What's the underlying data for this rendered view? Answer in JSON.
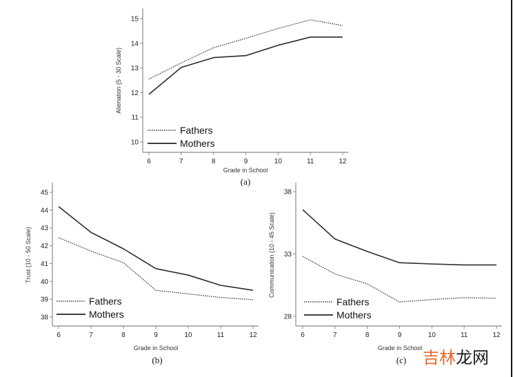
{
  "chart_data": [
    {
      "id": "a",
      "type": "line",
      "panel_label": "(a)",
      "xlabel": "Grade in School",
      "ylabel": "Alienation (5 - 30 Scale)",
      "x": [
        6,
        7,
        8,
        9,
        10,
        11,
        12
      ],
      "xticks": [
        "6",
        "7",
        "8",
        "9",
        "10",
        "11",
        "12"
      ],
      "yticks": [
        10,
        11,
        12,
        13,
        14,
        15
      ],
      "ylim": [
        9.85,
        15.4
      ],
      "legend": "bottom-left",
      "series": [
        {
          "name": "Fathers",
          "style": "dotted",
          "values": [
            12.55,
            13.2,
            13.82,
            14.2,
            14.6,
            14.95,
            14.72
          ]
        },
        {
          "name": "Mothers",
          "style": "solid",
          "values": [
            11.93,
            13.02,
            13.42,
            13.5,
            13.92,
            14.25,
            14.25
          ]
        }
      ]
    },
    {
      "id": "b",
      "type": "line",
      "panel_label": "(b)",
      "xlabel": "Grade in School",
      "ylabel": "Trust (10 - 50 Scale)",
      "x": [
        6,
        7,
        8,
        9,
        10,
        11,
        12
      ],
      "xticks": [
        "6",
        "7",
        "8",
        "9",
        "10",
        "11",
        "12"
      ],
      "yticks": [
        38,
        39,
        40,
        41,
        42,
        43,
        44,
        45
      ],
      "ylim": [
        37.5,
        45.5
      ],
      "legend": "bottom-left",
      "series": [
        {
          "name": "Fathers",
          "style": "dotted",
          "values": [
            42.45,
            41.7,
            41.05,
            39.5,
            39.3,
            39.1,
            38.97
          ]
        },
        {
          "name": "Mothers",
          "style": "solid",
          "values": [
            44.2,
            42.75,
            41.83,
            40.72,
            40.35,
            39.78,
            39.5
          ]
        }
      ]
    },
    {
      "id": "c",
      "type": "line",
      "panel_label": "(c)",
      "xlabel": "Grade in School",
      "ylabel": "Communication (10 - 45 Scale)",
      "x": [
        6,
        7,
        8,
        9,
        10,
        11,
        12
      ],
      "xticks": [
        "6",
        "7",
        "8",
        "9",
        "10",
        "11",
        "12"
      ],
      "yticks": [
        28,
        33,
        38
      ],
      "ylim": [
        27.2,
        38.8
      ],
      "legend": "bottom-left",
      "series": [
        {
          "name": "Fathers",
          "style": "dotted",
          "values": [
            32.8,
            31.4,
            30.6,
            29.15,
            29.35,
            29.5,
            29.45
          ]
        },
        {
          "name": "Mothers",
          "style": "solid",
          "values": [
            36.55,
            34.2,
            33.2,
            32.3,
            32.2,
            32.12,
            32.12
          ]
        }
      ]
    }
  ],
  "watermark": {
    "part1": "吉林",
    "part2": "龙网"
  }
}
